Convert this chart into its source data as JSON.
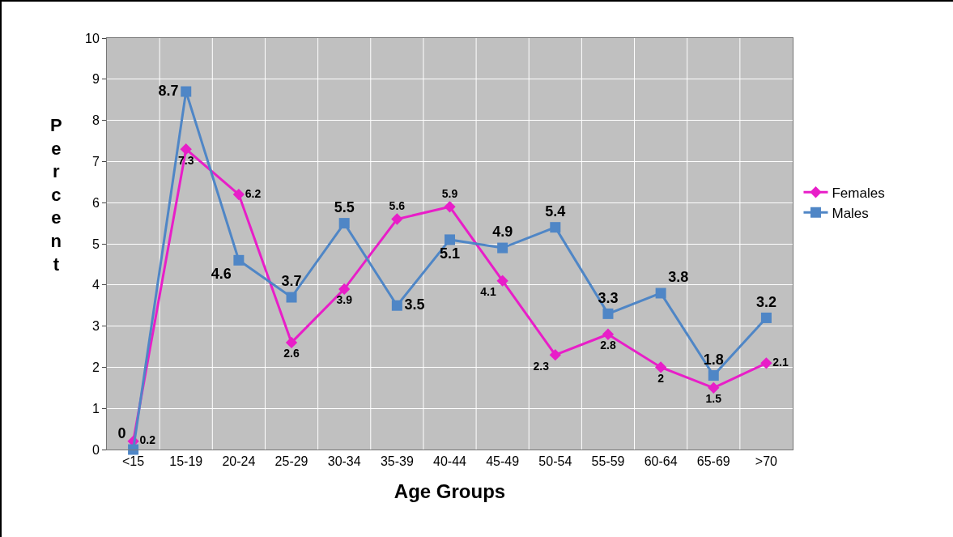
{
  "chart_data": {
    "type": "line",
    "xlabel": "Age Groups",
    "ylabel": "Percent",
    "categories": [
      "<15",
      "15-19",
      "20-24",
      "25-29",
      "30-34",
      "35-39",
      "40-44",
      "45-49",
      "50-54",
      "55-59",
      "60-64",
      "65-69",
      ">70"
    ],
    "series": [
      {
        "name": "Females",
        "color": "#e81ec8",
        "marker": "diamond",
        "values": [
          0.2,
          7.3,
          6.2,
          2.6,
          3.9,
          5.6,
          5.9,
          4.1,
          2.3,
          2.8,
          2,
          1.5,
          2.1
        ]
      },
      {
        "name": "Males",
        "color": "#4f86c6",
        "marker": "square",
        "values": [
          0,
          8.7,
          4.6,
          3.7,
          5.5,
          3.5,
          5.1,
          4.9,
          5.4,
          3.3,
          3.8,
          1.8,
          3.2
        ]
      }
    ],
    "ylim": [
      0,
      10
    ],
    "yticks": [
      0,
      1,
      2,
      3,
      4,
      5,
      6,
      7,
      8,
      9,
      10
    ],
    "grid": true,
    "legend": "right",
    "data_labels": true,
    "line_style": "solid"
  }
}
